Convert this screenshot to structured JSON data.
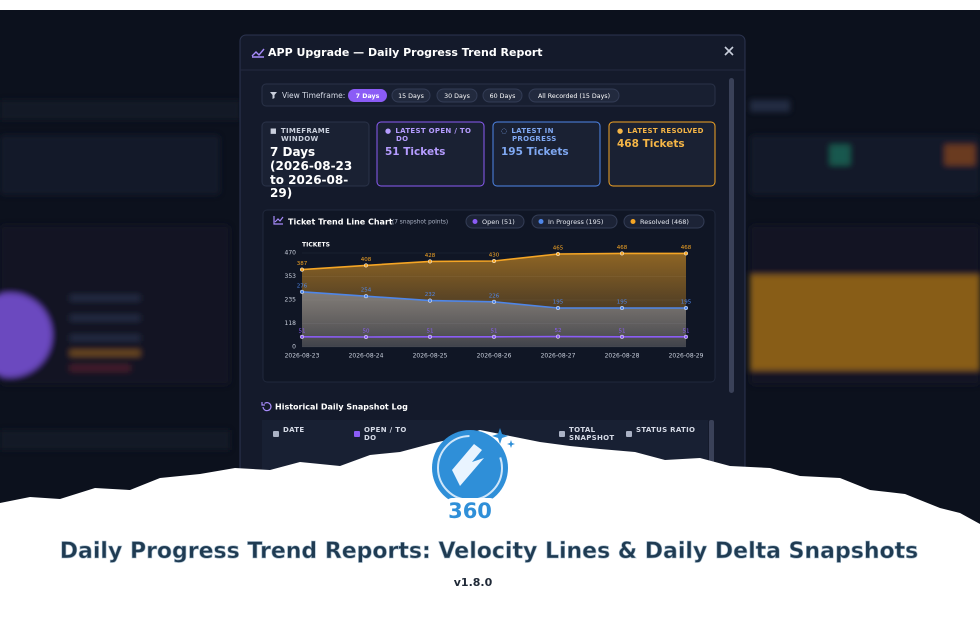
{
  "modal": {
    "title": "APP Upgrade — Daily Progress Trend Report",
    "timeframe_label": "View Timeframe:",
    "timeframe_options": [
      "7 Days",
      "15 Days",
      "30 Days",
      "60 Days",
      "All Recorded (15 Days)"
    ],
    "cards": [
      {
        "label": "TIMEFRAME WINDOW",
        "value": "7 Days (2026-08-23 to 2026-08-29)"
      },
      {
        "label": "LATEST OPEN / TO DO",
        "value": "51 Tickets"
      },
      {
        "label": "LATEST IN PROGRESS",
        "value": "195 Tickets"
      },
      {
        "label": "LATEST RESOLVED",
        "value": "468 Tickets"
      }
    ]
  },
  "chart_data": {
    "type": "line",
    "title": "Ticket Trend Line Chart",
    "subtitle": "(7 snapshot points)",
    "y_label": "TICKETS",
    "categories": [
      "2026-08-23",
      "2026-08-24",
      "2026-08-25",
      "2026-08-26",
      "2026-08-27",
      "2026-08-28",
      "2026-08-29"
    ],
    "series": [
      {
        "name": "Open (51)",
        "color": "#8b5cf6",
        "values": [
          51,
          50,
          51,
          51,
          52,
          51,
          51
        ]
      },
      {
        "name": "In Progress (195)",
        "color": "#4f86e8",
        "values": [
          276,
          254,
          232,
          226,
          195,
          195,
          195
        ]
      },
      {
        "name": "Resolved (468)",
        "color": "#f5a524",
        "values": [
          387,
          408,
          428,
          430,
          465,
          468,
          468
        ]
      }
    ],
    "ylim": [
      0,
      470
    ],
    "yticks": [
      0,
      118,
      235,
      353,
      470
    ]
  },
  "log": {
    "title": "Historical Daily Snapshot Log",
    "columns": [
      "DATE",
      "OPEN / TO DO",
      "TOTAL SNAPSHOT",
      "STATUS RATIO"
    ]
  },
  "footer": {
    "logo_text": "360",
    "headline": "Daily Progress Trend Reports: Velocity Lines & Daily Delta Snapshots",
    "version": "v1.8.0"
  }
}
